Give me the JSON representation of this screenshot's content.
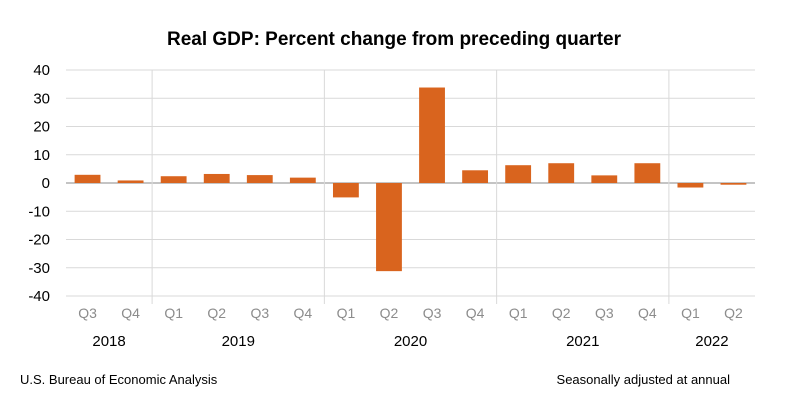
{
  "chart_data": {
    "type": "bar",
    "title": "Real GDP:  Percent change from preceding quarter",
    "categories": [
      "Q3",
      "Q4",
      "Q1",
      "Q2",
      "Q3",
      "Q4",
      "Q1",
      "Q2",
      "Q3",
      "Q4",
      "Q1",
      "Q2",
      "Q3",
      "Q4",
      "Q1",
      "Q2"
    ],
    "years": [
      {
        "label": "2018",
        "start": 0,
        "end": 1
      },
      {
        "label": "2019",
        "start": 2,
        "end": 5
      },
      {
        "label": "2020",
        "start": 6,
        "end": 9
      },
      {
        "label": "2021",
        "start": 10,
        "end": 13
      },
      {
        "label": "2022",
        "start": 14,
        "end": 15
      }
    ],
    "values": [
      2.9,
      0.9,
      2.4,
      3.2,
      2.8,
      1.9,
      -5.1,
      -31.2,
      33.8,
      4.5,
      6.3,
      7.0,
      2.7,
      7.0,
      -1.6,
      -0.6
    ],
    "ylim": [
      -40,
      40
    ],
    "yticks": [
      40,
      30,
      20,
      10,
      0,
      -10,
      -20,
      -30,
      -40
    ],
    "grid": true,
    "bar_color": "#d9641e",
    "source": "U.S. Bureau of Economic Analysis",
    "note": "Seasonally adjusted at annual"
  }
}
